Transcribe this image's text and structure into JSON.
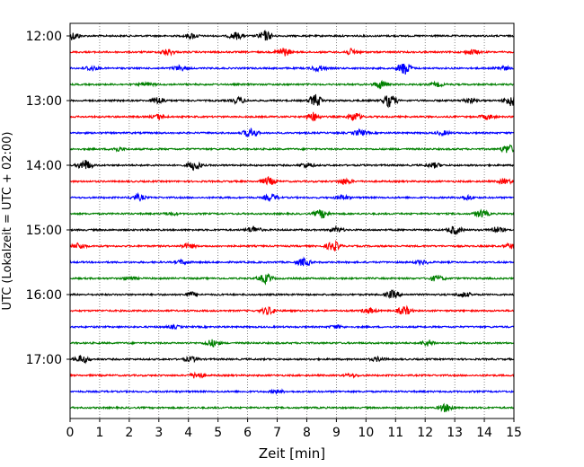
{
  "chart_data": {
    "type": "line",
    "title": "",
    "xlabel": "Zeit  [min]",
    "ylabel": "UTC (Lokalzeit = UTC + 02:00)",
    "xlim": [
      0,
      15
    ],
    "x_ticks": [
      "0",
      "1",
      "2",
      "3",
      "4",
      "5",
      "6",
      "7",
      "8",
      "9",
      "10",
      "11",
      "12",
      "13",
      "14",
      "15"
    ],
    "y_ticks": [
      "12:00",
      "13:00",
      "14:00",
      "15:00",
      "16:00",
      "17:00"
    ],
    "y_tick_rows": [
      0,
      4,
      8,
      12,
      16,
      20
    ],
    "grid": "vertical dotted",
    "line_colors": [
      "#000000",
      "#ff0000",
      "#0000ff",
      "#008000"
    ],
    "row_interval_minutes": 15,
    "rows": [
      {
        "start": "12:00",
        "color": "#000000",
        "bursts": [
          [
            0.1,
            0.8
          ],
          [
            5.6,
            0.7
          ],
          [
            6.6,
            1.0
          ],
          [
            4.1,
            0.5
          ]
        ]
      },
      {
        "start": "12:15",
        "color": "#ff0000",
        "bursts": [
          [
            3.3,
            0.6
          ],
          [
            7.2,
            0.9
          ],
          [
            9.5,
            0.6
          ],
          [
            13.6,
            0.5
          ]
        ]
      },
      {
        "start": "12:30",
        "color": "#0000ff",
        "bursts": [
          [
            0.7,
            0.5
          ],
          [
            3.7,
            0.5
          ],
          [
            8.4,
            0.6
          ],
          [
            11.3,
            1.3
          ],
          [
            14.6,
            0.5
          ]
        ]
      },
      {
        "start": "12:45",
        "color": "#008000",
        "bursts": [
          [
            10.5,
            0.8
          ],
          [
            2.6,
            0.4
          ],
          [
            12.4,
            0.4
          ]
        ]
      },
      {
        "start": "13:00",
        "color": "#000000",
        "bursts": [
          [
            3.0,
            0.7
          ],
          [
            5.7,
            0.6
          ],
          [
            8.3,
            1.2
          ],
          [
            10.8,
            1.3
          ],
          [
            13.5,
            0.5
          ],
          [
            14.9,
            1.1
          ]
        ]
      },
      {
        "start": "13:15",
        "color": "#ff0000",
        "bursts": [
          [
            3.0,
            0.5
          ],
          [
            8.2,
            0.9
          ],
          [
            9.6,
            0.9
          ],
          [
            14.1,
            0.5
          ]
        ]
      },
      {
        "start": "13:30",
        "color": "#0000ff",
        "bursts": [
          [
            6.1,
            1.0
          ],
          [
            9.8,
            0.6
          ],
          [
            12.6,
            0.4
          ]
        ]
      },
      {
        "start": "13:45",
        "color": "#008000",
        "bursts": [
          [
            14.8,
            0.9
          ],
          [
            1.6,
            0.4
          ]
        ]
      },
      {
        "start": "14:00",
        "color": "#000000",
        "bursts": [
          [
            0.5,
            1.1
          ],
          [
            4.2,
            1.0
          ],
          [
            8.0,
            0.5
          ],
          [
            12.3,
            0.5
          ]
        ]
      },
      {
        "start": "14:15",
        "color": "#ff0000",
        "bursts": [
          [
            6.7,
            0.8
          ],
          [
            9.3,
            0.6
          ],
          [
            14.7,
            0.5
          ]
        ]
      },
      {
        "start": "14:30",
        "color": "#0000ff",
        "bursts": [
          [
            2.3,
            0.6
          ],
          [
            6.8,
            0.7
          ],
          [
            9.2,
            0.5
          ],
          [
            13.4,
            0.5
          ]
        ]
      },
      {
        "start": "14:45",
        "color": "#008000",
        "bursts": [
          [
            8.5,
            0.9
          ],
          [
            13.9,
            0.8
          ],
          [
            3.4,
            0.3
          ]
        ]
      },
      {
        "start": "15:00",
        "color": "#000000",
        "bursts": [
          [
            6.2,
            0.7
          ],
          [
            9.0,
            0.5
          ],
          [
            13.0,
            0.9
          ],
          [
            14.4,
            0.6
          ]
        ]
      },
      {
        "start": "15:15",
        "color": "#ff0000",
        "bursts": [
          [
            0.3,
            0.6
          ],
          [
            4.0,
            0.5
          ],
          [
            8.9,
            1.0
          ],
          [
            14.9,
            0.5
          ]
        ]
      },
      {
        "start": "15:30",
        "color": "#0000ff",
        "bursts": [
          [
            3.8,
            0.4
          ],
          [
            7.9,
            0.8
          ],
          [
            11.9,
            0.4
          ]
        ]
      },
      {
        "start": "15:45",
        "color": "#008000",
        "bursts": [
          [
            6.6,
            0.9
          ],
          [
            12.4,
            0.6
          ],
          [
            2.0,
            0.3
          ]
        ]
      },
      {
        "start": "16:00",
        "color": "#000000",
        "bursts": [
          [
            4.1,
            0.5
          ],
          [
            10.9,
            0.8
          ],
          [
            13.3,
            0.5
          ]
        ]
      },
      {
        "start": "16:15",
        "color": "#ff0000",
        "bursts": [
          [
            6.7,
            0.8
          ],
          [
            10.1,
            0.5
          ],
          [
            11.3,
            0.9
          ]
        ]
      },
      {
        "start": "16:30",
        "color": "#0000ff",
        "bursts": [
          [
            3.5,
            0.3
          ],
          [
            9.0,
            0.3
          ]
        ]
      },
      {
        "start": "16:45",
        "color": "#008000",
        "bursts": [
          [
            4.8,
            0.7
          ],
          [
            12.1,
            0.6
          ]
        ]
      },
      {
        "start": "17:00",
        "color": "#000000",
        "bursts": [
          [
            0.4,
            0.8
          ],
          [
            4.1,
            0.5
          ],
          [
            10.4,
            0.4
          ]
        ]
      },
      {
        "start": "17:15",
        "color": "#ff0000",
        "bursts": [
          [
            4.3,
            0.7
          ],
          [
            9.5,
            0.3
          ]
        ]
      },
      {
        "start": "17:30",
        "color": "#0000ff",
        "bursts": [
          [
            7.0,
            0.3
          ]
        ]
      },
      {
        "start": "17:45",
        "color": "#008000",
        "bursts": [
          [
            12.7,
            0.8
          ]
        ]
      }
    ]
  }
}
